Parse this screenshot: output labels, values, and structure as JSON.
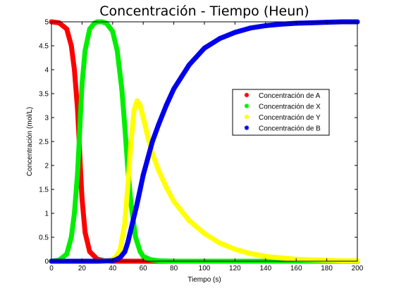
{
  "chart_data": {
    "type": "scatter",
    "title": "Concentración - Tiempo (Heun)",
    "xlabel": "Tiempo (s)",
    "ylabel": "Concentración (mol/L)",
    "xlim": [
      0,
      200
    ],
    "ylim": [
      0,
      5
    ],
    "x_ticks": [
      "0",
      "20",
      "40",
      "60",
      "80",
      "100",
      "120",
      "140",
      "160",
      "180",
      "200"
    ],
    "y_ticks": [
      "0",
      "0.5",
      "1",
      "1.5",
      "2",
      "2.5",
      "3",
      "3.5",
      "4",
      "4.5",
      "5"
    ],
    "grid": false,
    "legend_position": "right",
    "series": [
      {
        "name": "Concentración de A",
        "color": "#ff0000",
        "marker": "*",
        "x": [
          0,
          5,
          10,
          13,
          15,
          17,
          18,
          19,
          20,
          22,
          25,
          30,
          35,
          40,
          50,
          60,
          80,
          100,
          150,
          200
        ],
        "y": [
          5.0,
          4.98,
          4.85,
          4.5,
          4.0,
          3.2,
          2.6,
          1.9,
          1.3,
          0.6,
          0.2,
          0.04,
          0.01,
          0.0,
          0.0,
          0.0,
          0.0,
          0.0,
          0.0,
          0.0
        ]
      },
      {
        "name": "Concentración de X",
        "color": "#00ee00",
        "marker": "*",
        "x": [
          0,
          5,
          10,
          13,
          15,
          17,
          18,
          19,
          20,
          22,
          25,
          28,
          30,
          33,
          36,
          40,
          43,
          46,
          48,
          50,
          52,
          55,
          58,
          60,
          65,
          70,
          80,
          100,
          150,
          200
        ],
        "y": [
          0.0,
          0.02,
          0.15,
          0.5,
          1.0,
          1.8,
          2.4,
          3.1,
          3.7,
          4.4,
          4.85,
          4.97,
          5.0,
          5.0,
          4.97,
          4.8,
          4.4,
          3.6,
          2.8,
          1.9,
          1.2,
          0.5,
          0.2,
          0.1,
          0.03,
          0.01,
          0.0,
          0.0,
          0.0,
          0.0
        ]
      },
      {
        "name": "Concentración de Y",
        "color": "#ffff00",
        "marker": "*",
        "x": [
          0,
          20,
          30,
          38,
          42,
          45,
          48,
          50,
          52,
          54,
          56,
          58,
          60,
          63,
          66,
          70,
          75,
          80,
          90,
          100,
          110,
          120,
          130,
          140,
          150,
          160,
          170,
          180,
          190,
          200
        ],
        "y": [
          0.0,
          0.0,
          0.0,
          0.02,
          0.08,
          0.25,
          0.8,
          1.6,
          2.5,
          3.15,
          3.35,
          3.25,
          3.0,
          2.6,
          2.25,
          1.9,
          1.55,
          1.25,
          0.85,
          0.58,
          0.38,
          0.25,
          0.16,
          0.1,
          0.07,
          0.04,
          0.03,
          0.02,
          0.01,
          0.01
        ]
      },
      {
        "name": "Concentración de B",
        "color": "#0000ee",
        "marker": "*",
        "x": [
          0,
          30,
          40,
          42,
          45,
          48,
          50,
          53,
          56,
          58,
          60,
          63,
          66,
          70,
          75,
          80,
          85,
          90,
          100,
          110,
          120,
          130,
          140,
          150,
          160,
          170,
          180,
          190,
          200
        ],
        "y": [
          0.0,
          0.0,
          0.01,
          0.03,
          0.08,
          0.2,
          0.4,
          0.8,
          1.2,
          1.5,
          1.8,
          2.15,
          2.5,
          2.85,
          3.25,
          3.6,
          3.85,
          4.1,
          4.45,
          4.65,
          4.78,
          4.87,
          4.92,
          4.95,
          4.97,
          4.98,
          4.99,
          5.0,
          5.0
        ]
      }
    ]
  }
}
